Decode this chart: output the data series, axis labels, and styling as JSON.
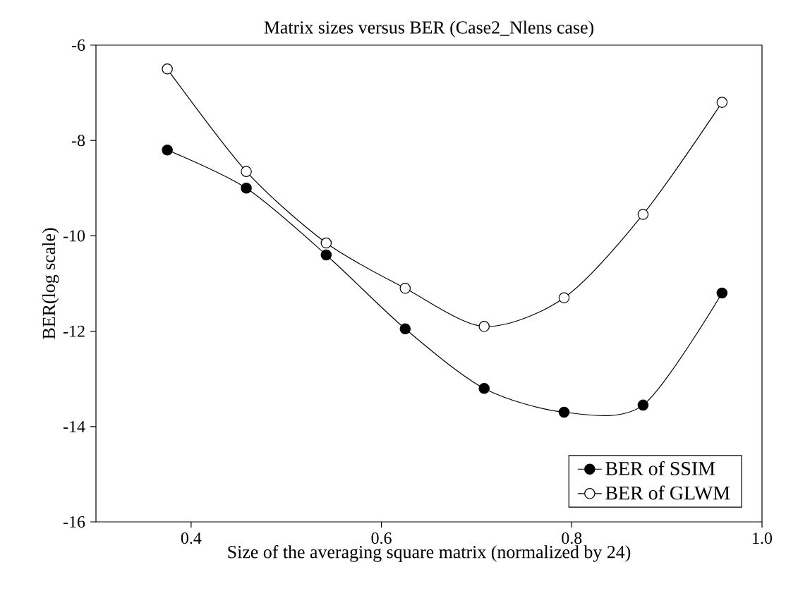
{
  "chart_data": {
    "type": "line",
    "title": "Matrix sizes versus BER (Case2_Nlens case)",
    "xlabel": "Size of the averaging square matrix (normalized by 24)",
    "ylabel": "BER(log scale)",
    "x": [
      0.375,
      0.458,
      0.542,
      0.625,
      0.708,
      0.792,
      0.875,
      0.958
    ],
    "series": [
      {
        "name": "BER of SSIM",
        "color": "#000000",
        "values": [
          -8.2,
          -9.0,
          -10.4,
          -11.95,
          -13.2,
          -13.7,
          -13.55,
          -11.2
        ]
      },
      {
        "name": "BER of GLWM",
        "color": "#ffffff",
        "values": [
          -6.5,
          -8.65,
          -10.15,
          -11.1,
          -11.9,
          -11.3,
          -9.55,
          -7.2
        ]
      }
    ],
    "xlim": [
      0.3,
      1.0
    ],
    "ylim": [
      -16,
      -6
    ],
    "xticks": [
      0.4,
      0.6,
      0.8,
      {
        "value": 1.0,
        "label": "1.0"
      }
    ],
    "yticks": [
      -16,
      -14,
      -12,
      -10,
      -8,
      -6
    ],
    "legend": "bottom right",
    "marker": "circle",
    "line_style": "solid",
    "grid": false
  }
}
